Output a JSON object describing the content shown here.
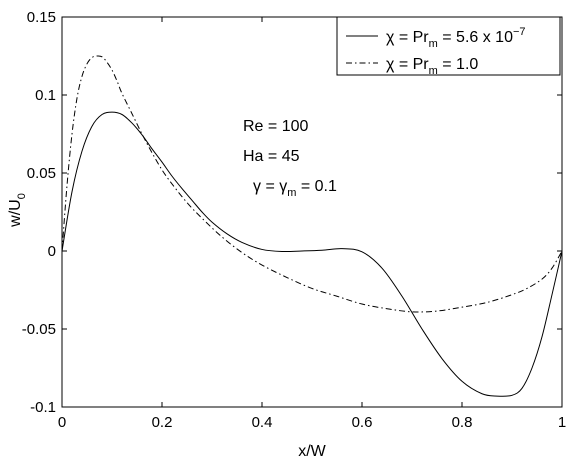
{
  "chart_data": {
    "type": "line",
    "xlabel": "x/W",
    "ylabel": "w/U",
    "ylabel_sub": "0",
    "xlim": [
      0,
      1
    ],
    "ylim": [
      -0.1,
      0.15
    ],
    "grid": false,
    "legend_position": "top-right",
    "x_ticks": [
      0,
      0.2,
      0.4,
      0.6,
      0.8,
      1
    ],
    "x_tick_labels": [
      "0",
      "0.2",
      "0.4",
      "0.6",
      "0.8",
      "1"
    ],
    "y_ticks": [
      -0.1,
      -0.05,
      0,
      0.05,
      0.1,
      0.15
    ],
    "y_tick_labels": [
      "-0.1",
      "-0.05",
      "0",
      "0.05",
      "0.1",
      "0.15"
    ],
    "annotations": {
      "re": "Re = 100",
      "ha": "Ha = 45",
      "gamma_lead": "γ = γ",
      "gamma_sub": "m",
      "gamma_tail": " = 0.1"
    },
    "series": [
      {
        "legend_lead": "χ = Pr",
        "legend_sub": "m",
        "legend_mid": " = 5.6 x 10",
        "legend_sup": "−7",
        "style": "solid",
        "x": [
          0,
          0.02,
          0.04,
          0.06,
          0.08,
          0.1,
          0.12,
          0.14,
          0.16,
          0.18,
          0.2,
          0.22,
          0.24,
          0.26,
          0.28,
          0.3,
          0.33,
          0.36,
          0.4,
          0.44,
          0.48,
          0.52,
          0.56,
          0.6,
          0.64,
          0.68,
          0.72,
          0.76,
          0.8,
          0.84,
          0.87,
          0.9,
          0.92,
          0.94,
          0.96,
          0.98,
          1
        ],
        "y": [
          0,
          0.038,
          0.064,
          0.08,
          0.0875,
          0.089,
          0.0875,
          0.082,
          0.0745,
          0.0655,
          0.057,
          0.048,
          0.04,
          0.0325,
          0.025,
          0.0185,
          0.011,
          0.0055,
          0.001,
          -0.0003,
          0.0,
          0.0005,
          0.0015,
          -0.0005,
          -0.011,
          -0.029,
          -0.05,
          -0.069,
          -0.0835,
          -0.0915,
          -0.093,
          -0.0925,
          -0.088,
          -0.075,
          -0.055,
          -0.028,
          0
        ]
      },
      {
        "legend_lead": "χ = Pr",
        "legend_sub": "m",
        "legend_mid": " = 1.0",
        "legend_sup": "",
        "style": "dashdot",
        "x": [
          0,
          0.01,
          0.02,
          0.03,
          0.04,
          0.05,
          0.06,
          0.07,
          0.08,
          0.09,
          0.1,
          0.11,
          0.12,
          0.14,
          0.16,
          0.18,
          0.2,
          0.22,
          0.25,
          0.28,
          0.32,
          0.36,
          0.4,
          0.45,
          0.5,
          0.55,
          0.6,
          0.65,
          0.7,
          0.75,
          0.8,
          0.85,
          0.9,
          0.93,
          0.96,
          0.98,
          1
        ],
        "y": [
          0,
          0.042,
          0.075,
          0.098,
          0.112,
          0.12,
          0.124,
          0.125,
          0.1245,
          0.121,
          0.116,
          0.109,
          0.101,
          0.088,
          0.075,
          0.063,
          0.052,
          0.043,
          0.031,
          0.021,
          0.009,
          -0.001,
          -0.009,
          -0.017,
          -0.024,
          -0.029,
          -0.034,
          -0.037,
          -0.039,
          -0.0385,
          -0.036,
          -0.033,
          -0.028,
          -0.024,
          -0.018,
          -0.011,
          0
        ]
      }
    ]
  }
}
